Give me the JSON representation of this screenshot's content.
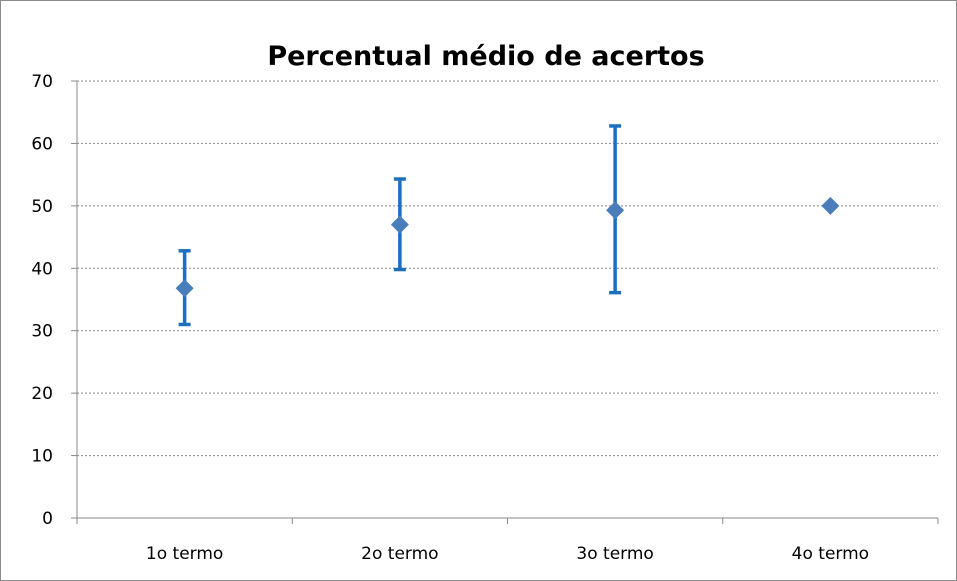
{
  "chart_data": {
    "type": "scatter",
    "title": "Percentual médio de acertos",
    "xlabel": "",
    "ylabel": "",
    "categories": [
      "1o termo",
      "2o termo",
      "3o termo",
      "4o termo"
    ],
    "series": [
      {
        "values": [
          36.8,
          47.0,
          49.3,
          50.0
        ],
        "error_high": [
          42.8,
          54.3,
          62.8,
          50.0
        ],
        "error_low": [
          31.0,
          39.8,
          36.1,
          50.0
        ]
      }
    ],
    "ylim": [
      0,
      70
    ],
    "yticks": [
      0,
      10,
      20,
      30,
      40,
      50,
      60,
      70
    ],
    "grid": true,
    "legend": "none",
    "colors": {
      "marker": "#4a7ebb",
      "error_bar": "#1f6fbf",
      "axis": "#888888",
      "grid": "#888888"
    }
  }
}
